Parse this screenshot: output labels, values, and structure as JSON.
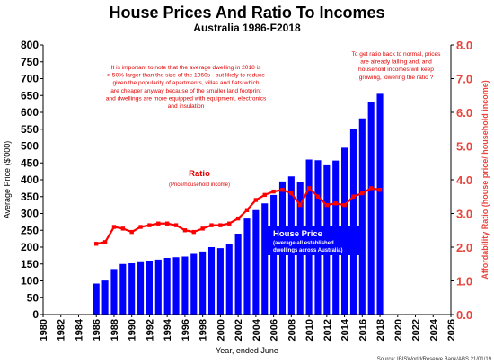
{
  "chart_data": {
    "type": "bar",
    "title": "House Prices And Ratio To Incomes",
    "subtitle": "Australia 1986-F2018",
    "xlabel": "Year, ended June",
    "ylabel": "Average Price ($'000)",
    "y2label": "Affordability Ratio  (house price/ household income)",
    "ylim": [
      0,
      800
    ],
    "y2lim": [
      0,
      8
    ],
    "xlim": [
      1980,
      2026
    ],
    "y_ticks": [
      "0",
      "50",
      "100",
      "150",
      "200",
      "250",
      "300",
      "350",
      "400",
      "450",
      "500",
      "550",
      "600",
      "650",
      "700",
      "750",
      "800"
    ],
    "y2_ticks": [
      "0.0",
      "1.0",
      "2.0",
      "3.0",
      "4.0",
      "5.0",
      "6.0",
      "7.0",
      "8.0"
    ],
    "x_ticks": [
      "1980",
      "1982",
      "1984",
      "1986",
      "1988",
      "1990",
      "1992",
      "1994",
      "1996",
      "1998",
      "2000",
      "2002",
      "2004",
      "2006",
      "2008",
      "2010",
      "2012",
      "2014",
      "2016",
      "2018",
      "2020",
      "2022",
      "2024",
      "2026"
    ],
    "grid": false,
    "series": [
      {
        "name": "House Price",
        "type": "bar",
        "axis": "left",
        "color": "#0000ff",
        "x": [
          1986,
          1987,
          1988,
          1989,
          1990,
          1991,
          1992,
          1993,
          1994,
          1995,
          1996,
          1997,
          1998,
          1999,
          2000,
          2001,
          2002,
          2003,
          2004,
          2005,
          2006,
          2007,
          2008,
          2009,
          2010,
          2011,
          2012,
          2013,
          2014,
          2015,
          2016,
          2017,
          2018
        ],
        "values": [
          92,
          101,
          135,
          150,
          152,
          158,
          160,
          163,
          168,
          170,
          172,
          180,
          187,
          200,
          197,
          210,
          240,
          285,
          310,
          330,
          355,
          395,
          410,
          393,
          460,
          458,
          443,
          457,
          495,
          550,
          582,
          630,
          655
        ]
      },
      {
        "name": "Ratio",
        "type": "line",
        "axis": "right",
        "color": "#ff0000",
        "x": [
          1986,
          1987,
          1988,
          1989,
          1990,
          1991,
          1992,
          1993,
          1994,
          1995,
          1996,
          1997,
          1998,
          1999,
          2000,
          2001,
          2002,
          2003,
          2004,
          2005,
          2006,
          2007,
          2008,
          2009,
          2010,
          2011,
          2012,
          2013,
          2014,
          2015,
          2016,
          2017,
          2018
        ],
        "values": [
          2.1,
          2.15,
          2.6,
          2.55,
          2.45,
          2.6,
          2.65,
          2.7,
          2.7,
          2.65,
          2.5,
          2.45,
          2.55,
          2.65,
          2.65,
          2.7,
          2.85,
          3.1,
          3.4,
          3.55,
          3.65,
          3.7,
          3.6,
          3.25,
          3.75,
          3.5,
          3.25,
          3.3,
          3.25,
          3.5,
          3.6,
          3.75,
          3.7
        ]
      }
    ],
    "annotations": {
      "note_left": [
        "It is important to note that the average dwelling in 2018 is",
        "> 50% larger than the size of the 1960s - but likely to reduce",
        "given the popularity of apartments, villas and flats which",
        "are cheaper anyway because of the smaller land footprint",
        "and dwellings are more equipped with equipment, electronics",
        "and insulation"
      ],
      "note_right": [
        "To get ratio back to normal, prices",
        "are already falling and, and",
        "household incomes will keep",
        "growing, lowering the ratio ?"
      ],
      "ratio_label": "Ratio",
      "ratio_sublabel": "(Price/household income)",
      "house_price_label": "House Price",
      "house_price_sub1": "(average all established",
      "house_price_sub2": "dwellings across Australia)",
      "source": "Source: IBISWorld/Reserve Bank/ABS  21/01/19"
    },
    "colors": {
      "bar": "#0000ff",
      "ratio_line": "#ff0000",
      "right_axis_text": "#e8453c",
      "note_text": "#e00000",
      "label_box": "#0000ff"
    }
  }
}
